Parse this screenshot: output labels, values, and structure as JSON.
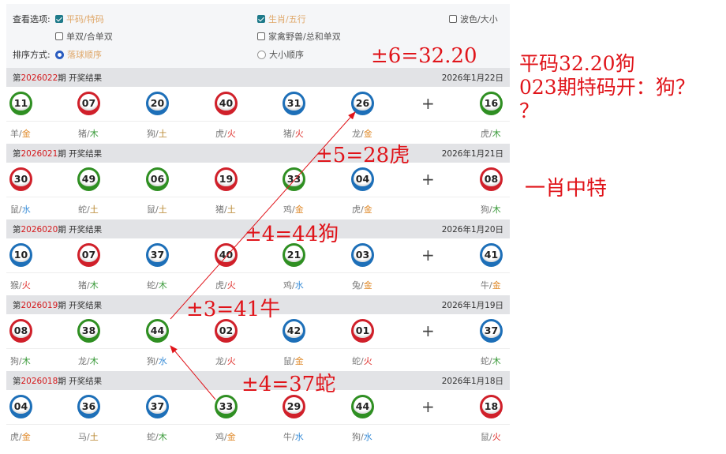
{
  "options": {
    "view_label": "查看选项:",
    "sort_label": "排序方式:",
    "items": [
      {
        "label": "平码/特码",
        "checked": true
      },
      {
        "label": "生肖/五行",
        "checked": true
      },
      {
        "label": "波色/大小",
        "checked": false
      },
      {
        "label": "单双/合单双",
        "checked": false
      },
      {
        "label": "家禽野兽/总和单双",
        "checked": false
      }
    ],
    "sort": [
      {
        "label": "落球顺序",
        "selected": true
      },
      {
        "label": "大小顺序",
        "selected": false
      }
    ]
  },
  "colors": {
    "red": "#d0202a",
    "green": "#2f8f22",
    "blue": "#1d6fb8",
    "金": "#e08a2a",
    "木": "#3a9a3a",
    "水": "#3d8fd8",
    "火": "#e0322e",
    "土": "#b8862e"
  },
  "periods": [
    {
      "prefix": "第",
      "issue": "2026022",
      "suffix": "期 开奖结果",
      "date": "2026年1月22日",
      "balls": [
        {
          "n": "11",
          "c": "green",
          "z": "羊",
          "e": "金"
        },
        {
          "n": "07",
          "c": "red",
          "z": "猪",
          "e": "木"
        },
        {
          "n": "20",
          "c": "blue",
          "z": "狗",
          "e": "土"
        },
        {
          "n": "40",
          "c": "red",
          "z": "虎",
          "e": "火"
        },
        {
          "n": "31",
          "c": "blue",
          "z": "猪",
          "e": "火"
        },
        {
          "n": "26",
          "c": "blue",
          "z": "龙",
          "e": "金"
        },
        {
          "n": "16",
          "c": "green",
          "z": "虎",
          "e": "木"
        }
      ]
    },
    {
      "prefix": "第",
      "issue": "2026021",
      "suffix": "期 开奖结果",
      "date": "2026年1月21日",
      "balls": [
        {
          "n": "30",
          "c": "red",
          "z": "鼠",
          "e": "水"
        },
        {
          "n": "49",
          "c": "green",
          "z": "蛇",
          "e": "土"
        },
        {
          "n": "06",
          "c": "green",
          "z": "鼠",
          "e": "土"
        },
        {
          "n": "19",
          "c": "red",
          "z": "猪",
          "e": "土"
        },
        {
          "n": "33",
          "c": "green",
          "z": "鸡",
          "e": "金"
        },
        {
          "n": "04",
          "c": "blue",
          "z": "虎",
          "e": "金"
        },
        {
          "n": "08",
          "c": "red",
          "z": "狗",
          "e": "木"
        }
      ]
    },
    {
      "prefix": "第",
      "issue": "2026020",
      "suffix": "期 开奖结果",
      "date": "2026年1月20日",
      "balls": [
        {
          "n": "10",
          "c": "blue",
          "z": "猴",
          "e": "火"
        },
        {
          "n": "07",
          "c": "red",
          "z": "猪",
          "e": "木"
        },
        {
          "n": "37",
          "c": "blue",
          "z": "蛇",
          "e": "木"
        },
        {
          "n": "40",
          "c": "red",
          "z": "虎",
          "e": "火"
        },
        {
          "n": "21",
          "c": "green",
          "z": "鸡",
          "e": "水"
        },
        {
          "n": "03",
          "c": "blue",
          "z": "兔",
          "e": "金"
        },
        {
          "n": "41",
          "c": "blue",
          "z": "牛",
          "e": "金"
        }
      ]
    },
    {
      "prefix": "第",
      "issue": "2026019",
      "suffix": "期 开奖结果",
      "date": "2026年1月19日",
      "balls": [
        {
          "n": "08",
          "c": "red",
          "z": "狗",
          "e": "木"
        },
        {
          "n": "38",
          "c": "green",
          "z": "龙",
          "e": "木"
        },
        {
          "n": "44",
          "c": "green",
          "z": "狗",
          "e": "水"
        },
        {
          "n": "02",
          "c": "red",
          "z": "龙",
          "e": "火"
        },
        {
          "n": "42",
          "c": "blue",
          "z": "鼠",
          "e": "金"
        },
        {
          "n": "01",
          "c": "red",
          "z": "蛇",
          "e": "火"
        },
        {
          "n": "37",
          "c": "blue",
          "z": "蛇",
          "e": "木"
        }
      ]
    },
    {
      "prefix": "第",
      "issue": "2026018",
      "suffix": "期 开奖结果",
      "date": "2026年1月18日",
      "balls": [
        {
          "n": "04",
          "c": "blue",
          "z": "虎",
          "e": "金"
        },
        {
          "n": "36",
          "c": "blue",
          "z": "马",
          "e": "土"
        },
        {
          "n": "37",
          "c": "blue",
          "z": "蛇",
          "e": "木"
        },
        {
          "n": "33",
          "c": "green",
          "z": "鸡",
          "e": "金"
        },
        {
          "n": "29",
          "c": "red",
          "z": "牛",
          "e": "水"
        },
        {
          "n": "44",
          "c": "green",
          "z": "狗",
          "e": "水"
        },
        {
          "n": "18",
          "c": "red",
          "z": "鼠",
          "e": "火"
        }
      ]
    }
  ],
  "plus": "+",
  "slash": "/",
  "annotations": {
    "a1": "±6=32.20",
    "a2": "±5=28虎",
    "a3": "±4=44狗",
    "a4": "±3=41牛",
    "a5": "±4=37蛇",
    "side1": "平码32.20狗",
    "side2": "023期特码开：狗？",
    "side3": "？",
    "side4": "一肖中特"
  }
}
